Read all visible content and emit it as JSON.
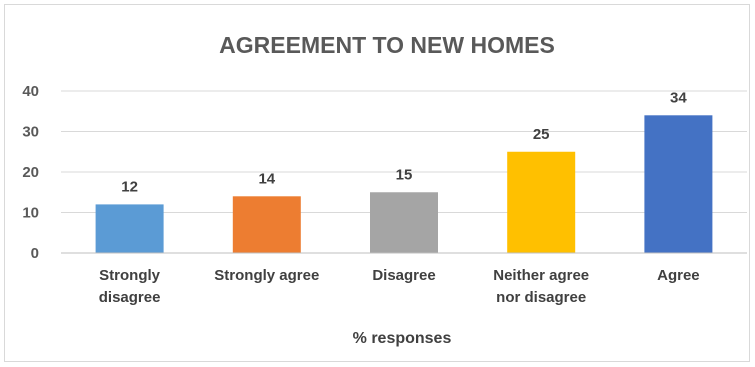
{
  "chart_data": {
    "type": "bar",
    "title": "AGREEMENT TO NEW HOMES",
    "xlabel": "% responses",
    "ylabel": "",
    "ylim": [
      0,
      40
    ],
    "yticks": [
      0,
      10,
      20,
      30,
      40
    ],
    "grid": true,
    "legend": "none",
    "categories": [
      [
        "Strongly",
        "disagree"
      ],
      [
        "Strongly agree"
      ],
      [
        "Disagree"
      ],
      [
        "Neither agree",
        "nor disagree"
      ],
      [
        "Agree"
      ]
    ],
    "values": [
      12,
      14,
      15,
      25,
      34
    ],
    "colors": [
      "#5b9bd5",
      "#ed7d31",
      "#a5a5a5",
      "#ffc000",
      "#4472c4"
    ],
    "gridline_color": "#d9d9d9",
    "axis_color": "#bfbfbf"
  }
}
